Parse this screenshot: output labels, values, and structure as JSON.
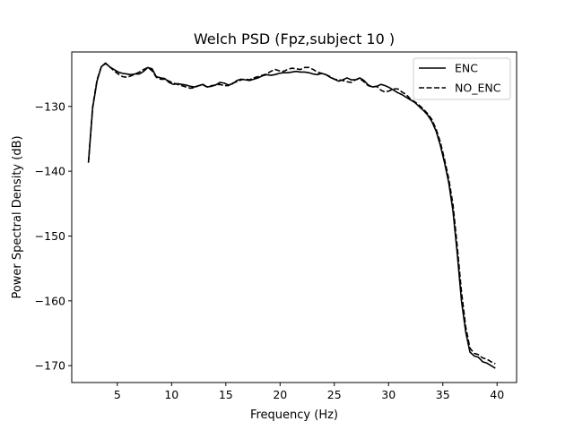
{
  "chart_data": {
    "type": "line",
    "title": "Welch PSD (Fpz,subject 10 )",
    "xlabel": "Frequency (Hz)",
    "ylabel": "Power Spectral Density (dB)",
    "xlim": [
      0.8,
      41.8
    ],
    "ylim": [
      -172.6,
      -121.6
    ],
    "xticks": [
      5,
      10,
      15,
      20,
      25,
      30,
      35,
      40
    ],
    "yticks": [
      -130,
      -140,
      -150,
      -160,
      -170
    ],
    "grid": false,
    "legend_position": "top-right",
    "series": [
      {
        "name": "ENC",
        "line_style": "solid",
        "color": "#000000",
        "x": [
          2.34,
          2.73,
          3.13,
          3.52,
          3.91,
          4.3,
          4.69,
          5.08,
          5.47,
          5.86,
          6.25,
          6.64,
          7.03,
          7.42,
          7.81,
          8.2,
          8.59,
          8.98,
          9.38,
          9.77,
          10.16,
          10.55,
          10.94,
          11.33,
          11.72,
          12.11,
          12.5,
          12.89,
          13.28,
          13.67,
          14.06,
          14.45,
          14.84,
          15.23,
          15.63,
          16.02,
          16.41,
          16.8,
          17.19,
          17.58,
          17.97,
          18.36,
          18.75,
          19.14,
          19.53,
          19.92,
          20.31,
          20.7,
          21.09,
          21.48,
          21.88,
          22.27,
          22.66,
          23.05,
          23.44,
          23.83,
          24.22,
          24.61,
          25.0,
          25.39,
          25.78,
          26.17,
          26.56,
          26.95,
          27.34,
          27.73,
          28.13,
          28.52,
          28.91,
          29.3,
          29.69,
          30.08,
          30.47,
          30.86,
          31.25,
          31.64,
          32.03,
          32.42,
          32.81,
          33.2,
          33.59,
          33.98,
          34.38,
          34.77,
          35.16,
          35.55,
          35.94,
          36.33,
          36.72,
          37.11,
          37.5,
          37.89,
          38.28,
          38.67,
          39.06,
          39.45,
          39.84
        ],
        "y": [
          -138.7,
          -130.2,
          -126.1,
          -123.9,
          -123.3,
          -123.9,
          -124.3,
          -124.7,
          -124.9,
          -125.0,
          -125.1,
          -125.0,
          -125.0,
          -124.6,
          -124.0,
          -124.2,
          -125.4,
          -125.6,
          -125.7,
          -126.3,
          -126.6,
          -126.5,
          -126.6,
          -126.7,
          -126.9,
          -127.0,
          -126.8,
          -126.6,
          -127.0,
          -126.9,
          -126.7,
          -126.3,
          -126.4,
          -126.7,
          -126.5,
          -126.0,
          -125.8,
          -125.9,
          -126.0,
          -125.8,
          -125.6,
          -125.3,
          -125.1,
          -125.2,
          -125.1,
          -124.9,
          -124.8,
          -124.8,
          -124.7,
          -124.6,
          -124.7,
          -124.7,
          -124.8,
          -125.0,
          -125.1,
          -124.9,
          -125.1,
          -125.5,
          -125.8,
          -126.1,
          -125.9,
          -125.6,
          -125.9,
          -125.9,
          -125.6,
          -126.0,
          -126.7,
          -127.0,
          -126.9,
          -126.6,
          -126.8,
          -127.1,
          -127.5,
          -127.9,
          -128.2,
          -128.6,
          -129.0,
          -129.4,
          -130.0,
          -130.6,
          -131.3,
          -132.3,
          -133.8,
          -136.0,
          -138.7,
          -141.8,
          -146.2,
          -152.7,
          -160.0,
          -164.8,
          -167.9,
          -168.5,
          -168.7,
          -169.4,
          -169.6,
          -170.0,
          -170.4
        ]
      },
      {
        "name": "NO_ENC",
        "line_style": "dashed",
        "color": "#000000",
        "x": [
          2.34,
          2.73,
          3.13,
          3.52,
          3.91,
          4.3,
          4.69,
          5.08,
          5.47,
          5.86,
          6.25,
          6.64,
          7.03,
          7.42,
          7.81,
          8.2,
          8.59,
          8.98,
          9.38,
          9.77,
          10.16,
          10.55,
          10.94,
          11.33,
          11.72,
          12.11,
          12.5,
          12.89,
          13.28,
          13.67,
          14.06,
          14.45,
          14.84,
          15.23,
          15.63,
          16.02,
          16.41,
          16.8,
          17.19,
          17.58,
          17.97,
          18.36,
          18.75,
          19.14,
          19.53,
          19.92,
          20.31,
          20.7,
          21.09,
          21.48,
          21.88,
          22.27,
          22.66,
          23.05,
          23.44,
          23.83,
          24.22,
          24.61,
          25.0,
          25.39,
          25.78,
          26.17,
          26.56,
          26.95,
          27.34,
          27.73,
          28.13,
          28.52,
          28.91,
          29.3,
          29.69,
          30.08,
          30.47,
          30.86,
          31.25,
          31.64,
          32.03,
          32.42,
          32.81,
          33.2,
          33.59,
          33.98,
          34.38,
          34.77,
          35.16,
          35.55,
          35.94,
          36.33,
          36.72,
          37.11,
          37.5,
          37.89,
          38.28,
          38.67,
          39.06,
          39.45,
          39.84
        ],
        "y": [
          -138.6,
          -130.0,
          -125.9,
          -123.9,
          -123.4,
          -123.9,
          -124.5,
          -125.0,
          -125.4,
          -125.5,
          -125.3,
          -125.0,
          -124.7,
          -124.3,
          -124.0,
          -124.5,
          -125.5,
          -125.8,
          -125.8,
          -126.1,
          -126.4,
          -126.6,
          -126.8,
          -127.0,
          -127.2,
          -127.1,
          -126.8,
          -126.7,
          -127.0,
          -126.8,
          -126.7,
          -126.6,
          -126.8,
          -126.8,
          -126.4,
          -126.2,
          -125.9,
          -125.8,
          -125.9,
          -125.6,
          -125.4,
          -125.2,
          -125.0,
          -124.6,
          -124.3,
          -124.5,
          -124.6,
          -124.3,
          -124.1,
          -124.2,
          -124.3,
          -124.0,
          -124.0,
          -124.3,
          -124.7,
          -124.9,
          -125.1,
          -125.4,
          -125.8,
          -125.9,
          -126.0,
          -126.2,
          -126.3,
          -125.9,
          -125.7,
          -126.2,
          -126.8,
          -127.0,
          -126.9,
          -127.5,
          -127.8,
          -127.6,
          -127.3,
          -127.3,
          -127.8,
          -128.2,
          -128.9,
          -129.3,
          -129.8,
          -130.4,
          -131.1,
          -132.0,
          -133.5,
          -135.5,
          -138.2,
          -141.2,
          -145.2,
          -151.6,
          -158.6,
          -164.0,
          -167.3,
          -168.1,
          -168.3,
          -168.8,
          -169.0,
          -169.4,
          -169.7
        ]
      }
    ]
  }
}
